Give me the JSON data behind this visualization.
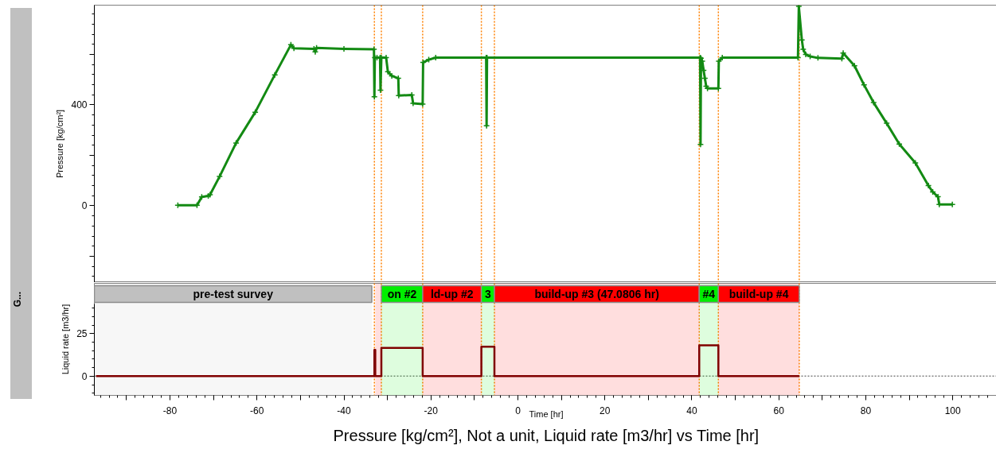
{
  "chart_data": [
    {
      "type": "line",
      "ylabel": "Pressure [kg/cm²]",
      "xlim": [
        -97.4,
        110.4
      ],
      "ylim": [
        -304,
        795
      ],
      "yticks": [
        {
          "value": -200,
          "label": null
        },
        0,
        {
          "value": 200,
          "label": null
        },
        400,
        {
          "value": 600,
          "label": null
        }
      ],
      "tick_labels": "y",
      "marker": "cross",
      "x": [
        -78.2,
        -73.8,
        -72.7,
        -71.2,
        -70.8,
        -68.6,
        -64.8,
        -60.4,
        -55.9,
        -52.2,
        -51.5,
        -46.9,
        -46.6,
        -46.3,
        -40.0,
        -33.1,
        -33.0,
        -32.9,
        -32.4,
        -31.7,
        -31.6,
        -31.4,
        -30.3,
        -29.9,
        -29.0,
        -27.5,
        -27.4,
        -24.4,
        -24.1,
        -21.9,
        -21.8,
        -20.5,
        -18.9,
        -7.3,
        -7.2,
        -7.1,
        41.9,
        42.0,
        42.1,
        42.4,
        42.7,
        43.0,
        43.3,
        43.6,
        46.1,
        46.2,
        47.0,
        64.4,
        64.6,
        65.3,
        65.6,
        66.2,
        67.2,
        69.0,
        74.5,
        74.8,
        77.4,
        79.6,
        81.8,
        84.8,
        87.7,
        91.4,
        94.4,
        95.4,
        96.6,
        96.9,
        99.9
      ],
      "series": [
        {
          "color": "#138a13",
          "values": [
            2,
            2,
            35,
            39,
            44,
            116,
            249,
            371,
            519,
            638,
            624,
            622,
            610,
            626,
            622,
            620,
            432,
            587,
            587,
            587,
            458,
            587,
            587,
            531,
            515,
            505,
            437,
            439,
            406,
            403,
            568,
            579,
            587,
            587,
            317,
            587,
            587,
            243,
            585,
            573,
            537,
            505,
            474,
            465,
            465,
            573,
            587,
            587,
            790,
            657,
            620,
            600,
            592,
            586,
            583,
            605,
            555,
            479,
            409,
            327,
            245,
            170,
            80,
            55,
            36,
            5,
            5
          ]
        }
      ],
      "ref_lines": [
        {
          "axis": "x",
          "value": -33.0,
          "color": "#ff8000",
          "line_style": "dotted"
        },
        {
          "axis": "x",
          "value": -31.4,
          "color": "#ff8000",
          "line_style": "dotted"
        },
        {
          "axis": "x",
          "value": -21.9,
          "color": "#ff8000",
          "line_style": "dotted"
        },
        {
          "axis": "x",
          "value": -8.4,
          "color": "#ff8000",
          "line_style": "dotted"
        },
        {
          "axis": "x",
          "value": -5.4,
          "color": "#ff8000",
          "line_style": "dotted"
        },
        {
          "axis": "x",
          "value": 41.7,
          "color": "#ff8000",
          "line_style": "dotted"
        },
        {
          "axis": "x",
          "value": 46.1,
          "color": "#ff8000",
          "line_style": "dotted"
        },
        {
          "axis": "x",
          "value": 64.7,
          "color": "#ff8000",
          "line_style": "dotted"
        }
      ]
    },
    {
      "type": "step",
      "title": "Pressure [kg/cm²], Not a unit, Liquid rate [m3/hr] vs Time [hr]",
      "xlabel": "Time [hr]",
      "ylabel": "Liquid rate [m3/hr]",
      "xlim": [
        -97.4,
        110.4
      ],
      "ylim": [
        -11.3,
        42.5
      ],
      "xticks": [
        {
          "value": -90,
          "label": null
        },
        -80,
        {
          "value": -70,
          "label": null
        },
        -60,
        {
          "value": -50,
          "label": null
        },
        -40,
        {
          "value": -30,
          "label": null
        },
        -20,
        {
          "value": -10,
          "label": null
        },
        0,
        {
          "value": 10,
          "label": null
        },
        20,
        {
          "value": 30,
          "label": null
        },
        40,
        {
          "value": 50,
          "label": null
        },
        60,
        {
          "value": 70,
          "label": null
        },
        80,
        {
          "value": 90,
          "label": null
        },
        100
      ],
      "yticks": [
        0,
        25
      ],
      "x": [
        -97.0,
        -33.0,
        -32.8,
        -31.4,
        -21.9,
        -8.4,
        -5.4,
        41.7,
        46.1,
        64.7
      ],
      "series": [
        {
          "color": "#800000",
          "values": [
            0,
            15.5,
            0,
            16.6,
            0,
            17.4,
            0,
            18.2,
            0,
            0
          ]
        }
      ],
      "annotations": [
        "G..."
      ],
      "bands": [
        {
          "axis": "x",
          "from": -97.4,
          "to": -33.6,
          "label": "pre-test survey",
          "color": "#c0c0c0"
        },
        {
          "axis": "x",
          "from": -32.8,
          "to": -31.4,
          "label": null,
          "color": "#ff0000"
        },
        {
          "axis": "x",
          "from": -31.4,
          "to": -21.9,
          "label": "on #2",
          "color": "#00ee00"
        },
        {
          "axis": "x",
          "from": -21.9,
          "to": -8.4,
          "label": "ld-up #2",
          "color": "#ff0000"
        },
        {
          "axis": "x",
          "from": -8.4,
          "to": -5.4,
          "label": "3",
          "color": "#00ee00"
        },
        {
          "axis": "x",
          "from": -5.4,
          "to": 41.7,
          "label": "build-up #3 (47.0806 hr)",
          "color": "#ff0000"
        },
        {
          "axis": "x",
          "from": 41.7,
          "to": 46.1,
          "label": "#4",
          "color": "#00ee00"
        },
        {
          "axis": "x",
          "from": 46.1,
          "to": 64.7,
          "label": "build-up #4",
          "color": "#ff0000"
        }
      ],
      "ref_lines": [
        {
          "axis": "x",
          "value": -33.0,
          "color": "#ff8000",
          "line_style": "dotted"
        },
        {
          "axis": "x",
          "value": -31.4,
          "color": "#ff8000",
          "line_style": "dotted"
        },
        {
          "axis": "x",
          "value": -21.9,
          "color": "#ff8000",
          "line_style": "dotted"
        },
        {
          "axis": "x",
          "value": -8.4,
          "color": "#ff8000",
          "line_style": "dotted"
        },
        {
          "axis": "x",
          "value": -5.4,
          "color": "#ff8000",
          "line_style": "dotted"
        },
        {
          "axis": "x",
          "value": 41.7,
          "color": "#ff8000",
          "line_style": "dotted"
        },
        {
          "axis": "x",
          "value": 46.1,
          "color": "#ff8000",
          "line_style": "dotted"
        },
        {
          "axis": "x",
          "value": 64.7,
          "color": "#ff8000",
          "line_style": "dotted"
        },
        {
          "axis": "y",
          "value": 0,
          "color": "#808080",
          "line_style": "dotted"
        }
      ]
    }
  ]
}
